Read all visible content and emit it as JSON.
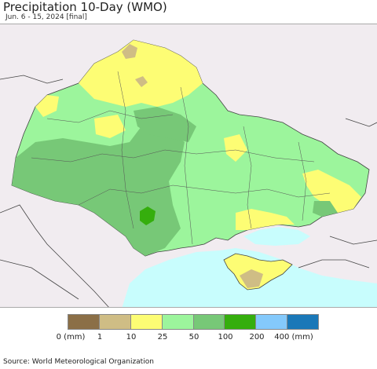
{
  "title": "Precipitation 10-Day (WMO)",
  "subtitle": "Jun. 6 - 15, 2024 [final]",
  "source": "Source: World Meteorological Organization",
  "legend": {
    "labels": [
      "0 (mm)",
      "1",
      "10",
      "25",
      "50",
      "100",
      "200",
      "400 (mm)"
    ],
    "colors": [
      "#8b6f47",
      "#cfbd85",
      "#fdfd74",
      "#9cf59c",
      "#77c877",
      "#35ae0d",
      "#84c9fb",
      "#1a78b8"
    ]
  },
  "map_colors": {
    "land_outside": "#f1ecf0",
    "sea": "#c8fdfd",
    "border": "#444444"
  }
}
